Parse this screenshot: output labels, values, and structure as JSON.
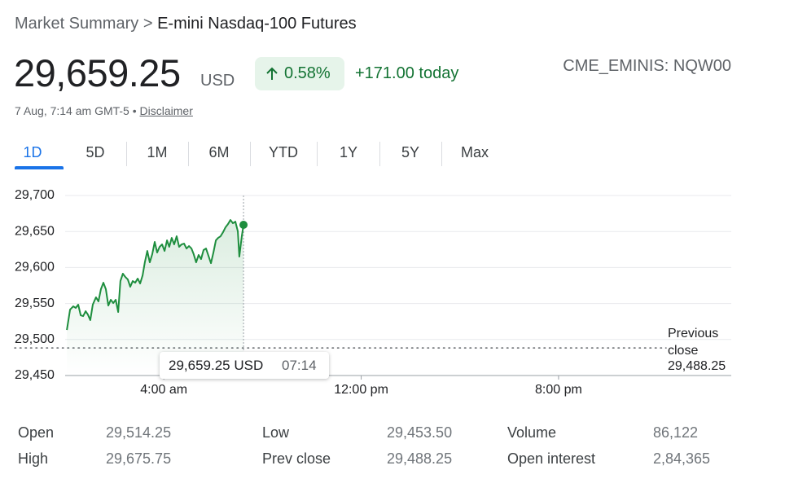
{
  "header": {
    "breadcrumb": "Market Summary",
    "separator": ">",
    "title": "E-mini Nasdaq-100 Futures",
    "price": "29,659.25",
    "currency": "USD",
    "change_percent": "0.58%",
    "change_today": "+171.00 today",
    "ticker": "CME_EMINIS: NQW00",
    "timestamp": "7 Aug, 7:14 am GMT-5",
    "bullet": "•",
    "disclaimer": "Disclaimer"
  },
  "tabs": [
    "1D",
    "5D",
    "1M",
    "6M",
    "YTD",
    "1Y",
    "5Y",
    "Max"
  ],
  "chart_data": {
    "type": "line",
    "color": "#1e8e3e",
    "grid": true,
    "xlim": [
      0,
      27
    ],
    "xticks": [
      {
        "value": 4,
        "label": "4:00 am"
      },
      {
        "value": 12,
        "label": "12:00 pm"
      },
      {
        "value": 20,
        "label": "8:00 pm"
      }
    ],
    "ylim": [
      29450,
      29700
    ],
    "yticks": [
      {
        "value": 29700,
        "label": "29,700"
      },
      {
        "value": 29650,
        "label": "29,650"
      },
      {
        "value": 29600,
        "label": "29,600"
      },
      {
        "value": 29550,
        "label": "29,550"
      },
      {
        "value": 29500,
        "label": "29,500"
      },
      {
        "value": 29450,
        "label": "29,450"
      }
    ],
    "x": [
      0.07,
      0.2,
      0.33,
      0.43,
      0.53,
      0.63,
      0.73,
      0.83,
      0.92,
      1.02,
      1.12,
      1.25,
      1.35,
      1.45,
      1.55,
      1.65,
      1.75,
      1.85,
      1.95,
      2.05,
      2.15,
      2.24,
      2.34,
      2.44,
      2.54,
      2.64,
      2.74,
      2.84,
      2.94,
      3.04,
      3.14,
      3.23,
      3.33,
      3.43,
      3.53,
      3.63,
      3.73,
      3.83,
      3.93,
      4.03,
      4.13,
      4.22,
      4.32,
      4.42,
      4.52,
      4.62,
      4.72,
      4.82,
      4.92,
      5.02,
      5.12,
      5.21,
      5.31,
      5.41,
      5.51,
      5.61,
      5.71,
      5.81,
      5.91,
      6.01,
      6.11,
      6.2,
      6.3,
      6.4,
      6.5,
      6.6,
      6.7,
      6.8,
      6.9,
      7.0,
      7.06,
      7.16,
      7.23
    ],
    "values": [
      29513.3,
      29541.6,
      29546.1,
      29543.9,
      29548.4,
      29533.7,
      29532.5,
      29539.3,
      29534.8,
      29526.9,
      29548.4,
      29558.6,
      29552.9,
      29569.9,
      29578.9,
      29569.9,
      29547.2,
      29555.2,
      29550.6,
      29555.2,
      29538.2,
      29581.2,
      29591.4,
      29586.8,
      29583.4,
      29573.3,
      29581.2,
      29578.9,
      29584.6,
      29577.8,
      29589.1,
      29607.2,
      29623,
      29607.2,
      29618.5,
      29635.5,
      29620.8,
      29628.7,
      29632.1,
      29623,
      29637.7,
      29628.7,
      29641.1,
      29632.1,
      29643.4,
      29628.7,
      29632.1,
      29633.2,
      29626.4,
      29629.8,
      29626.4,
      29618.5,
      29607.2,
      29617.4,
      29611.7,
      29624.2,
      29626.4,
      29616.2,
      29606,
      29620.8,
      29637.7,
      29641.1,
      29643.4,
      29649,
      29655.8,
      29660.3,
      29666,
      29661.5,
      29663.7,
      29650.2,
      29615.1,
      29643.4,
      29659.25
    ],
    "reference_line": {
      "label": "Previous close",
      "value": 29488.25,
      "value_label": "29,488.25"
    },
    "tooltip": {
      "price": "29,659.25 USD",
      "time": "07:14"
    }
  },
  "stats": {
    "rows": [
      [
        "Open",
        "29,514.25",
        "Low",
        "29,453.50",
        "Volume",
        "86,122"
      ],
      [
        "High",
        "29,675.75",
        "Prev close",
        "29,488.25",
        "Open interest",
        "2,84,365"
      ]
    ]
  }
}
